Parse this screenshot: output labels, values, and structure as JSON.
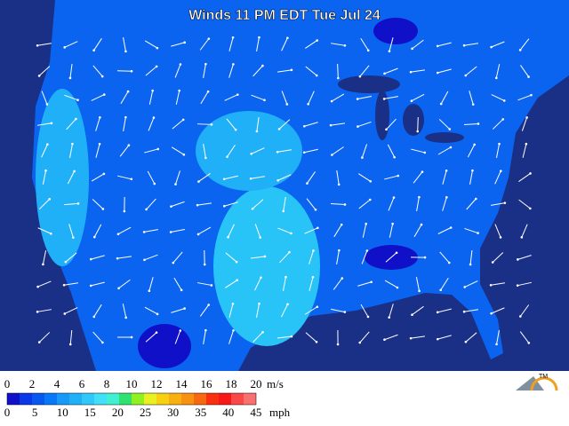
{
  "title": "Winds 11 PM EDT Tue Jul 24",
  "legend": {
    "ms_labels": [
      "0",
      "2",
      "4",
      "6",
      "8",
      "10",
      "12",
      "14",
      "16",
      "18",
      "20"
    ],
    "ms_unit": "m/s",
    "mph_labels": [
      "0",
      "5",
      "10",
      "15",
      "20",
      "25",
      "30",
      "35",
      "40",
      "45"
    ],
    "mph_unit": "mph",
    "colors": [
      "#1010c8",
      "#0838e8",
      "#0858f0",
      "#0878f8",
      "#1898f8",
      "#20b0f8",
      "#30c8f8",
      "#40e0f8",
      "#40f0d0",
      "#30e070",
      "#90f020",
      "#e8f020",
      "#f8d010",
      "#f8b010",
      "#f89010",
      "#f86810",
      "#f83010",
      "#f81818",
      "#f84848",
      "#f87070"
    ]
  },
  "logo": "TM"
}
